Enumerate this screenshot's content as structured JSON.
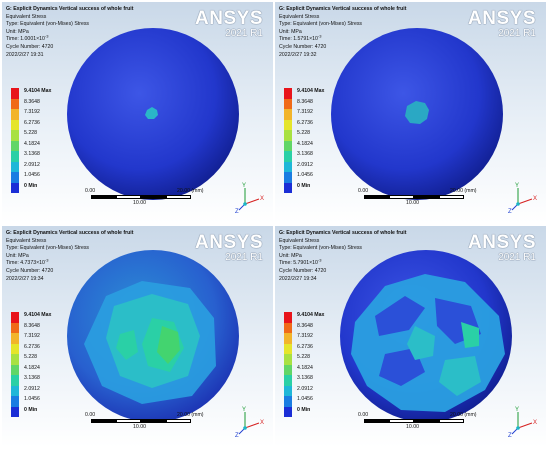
{
  "legend": {
    "values": [
      "9.4104 Max",
      "8.3648",
      "7.3192",
      "6.2736",
      "5.228",
      "4.1824",
      "3.1368",
      "2.0912",
      "1.0456",
      "0 Min"
    ],
    "colors": [
      "#e8141b",
      "#f06a18",
      "#f2b42a",
      "#e5e52b",
      "#a8e142",
      "#61d667",
      "#2ad0a6",
      "#1fb7d8",
      "#1a7de2",
      "#1b2ed6"
    ]
  },
  "brand": {
    "name": "ANSYS",
    "version": "2021 R1"
  },
  "scale": {
    "left": "0.00",
    "mid": "10.00",
    "right": "20.00 (mm)"
  },
  "triad": {
    "y": "Y",
    "x": "X",
    "z": "Z"
  },
  "panels": [
    {
      "title": "G: Explicit Dynamics Vertical success of whole fruit",
      "line1": "Equivalent Stress",
      "line2": "Type: Equivalent (von-Mises) Stress",
      "line3": "Unit: MPa",
      "time_value": "1.0001×10",
      "time_exp": "-3",
      "cycle": "Cycle Number: 4720",
      "date": "2022/2/27 19:31"
    },
    {
      "title": "G: Explicit Dynamics Vertical success of whole fruit",
      "line1": "Equivalent Stress",
      "line2": "Type: Equivalent (von-Mises) Stress",
      "line3": "Unit: MPa",
      "time_value": "1.5791×10",
      "time_exp": "-3",
      "cycle": "Cycle Number: 4720",
      "date": "2022/2/27 19:32"
    },
    {
      "title": "G: Explicit Dynamics Vertical success of whole fruit",
      "line1": "Equivalent Stress",
      "line2": "Type: Equivalent (von-Mises) Stress",
      "line3": "Unit: MPa",
      "time_value": "4.7373×10",
      "time_exp": "-3",
      "cycle": "Cycle Number: 4720",
      "date": "2022/2/27 19:34"
    },
    {
      "title": "G: Explicit Dynamics Vertical success of whole fruit",
      "line1": "Equivalent Stress",
      "line2": "Type: Equivalent (von-Mises) Stress",
      "line3": "Unit: MPa",
      "time_value": "5.7901×10",
      "time_exp": "-3",
      "cycle": "Cycle Number: 4720",
      "date": "2022/2/27 19:34"
    }
  ]
}
